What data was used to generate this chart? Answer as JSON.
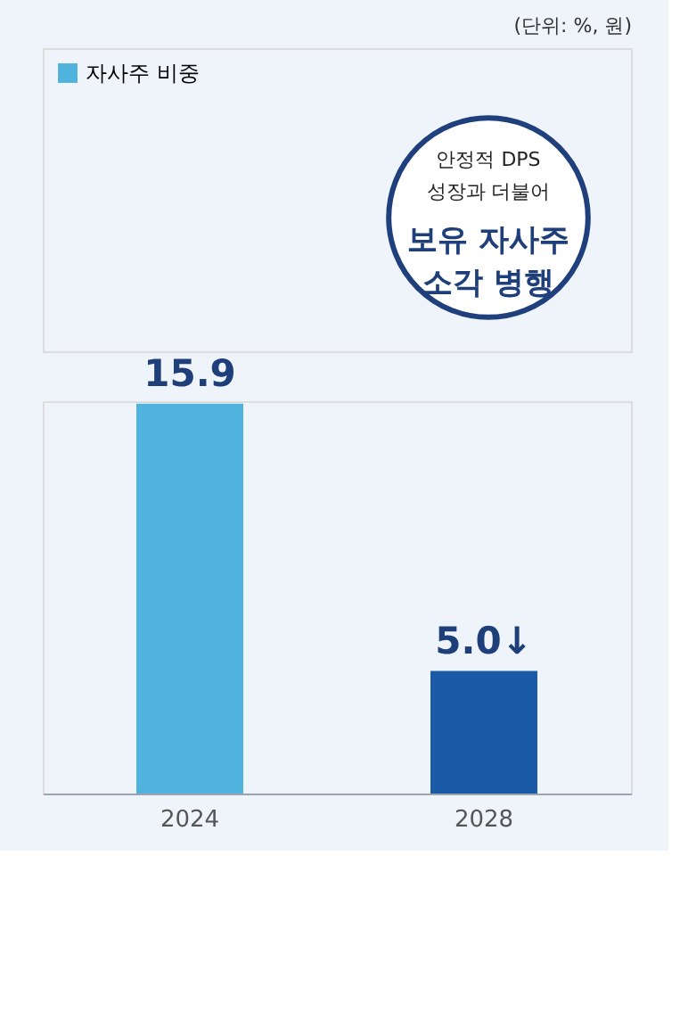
{
  "chart_data": {
    "type": "bar",
    "subtitle": "(단위: %, 원)",
    "categories": [
      "2024",
      "2028"
    ],
    "series": [
      {
        "name": "자사주 비중",
        "color": "#4fb3dd",
        "colors": [
          "#4fb3dd",
          "#1b5aa6"
        ],
        "values": [
          15.9,
          5.0
        ],
        "value_labels": [
          "15.9",
          "5.0↓"
        ]
      }
    ],
    "annotations": [
      "안정적 DPS",
      "성장과 더불어",
      "보유 자사주",
      "소각 병행"
    ],
    "legend": "top left",
    "grid": false
  }
}
